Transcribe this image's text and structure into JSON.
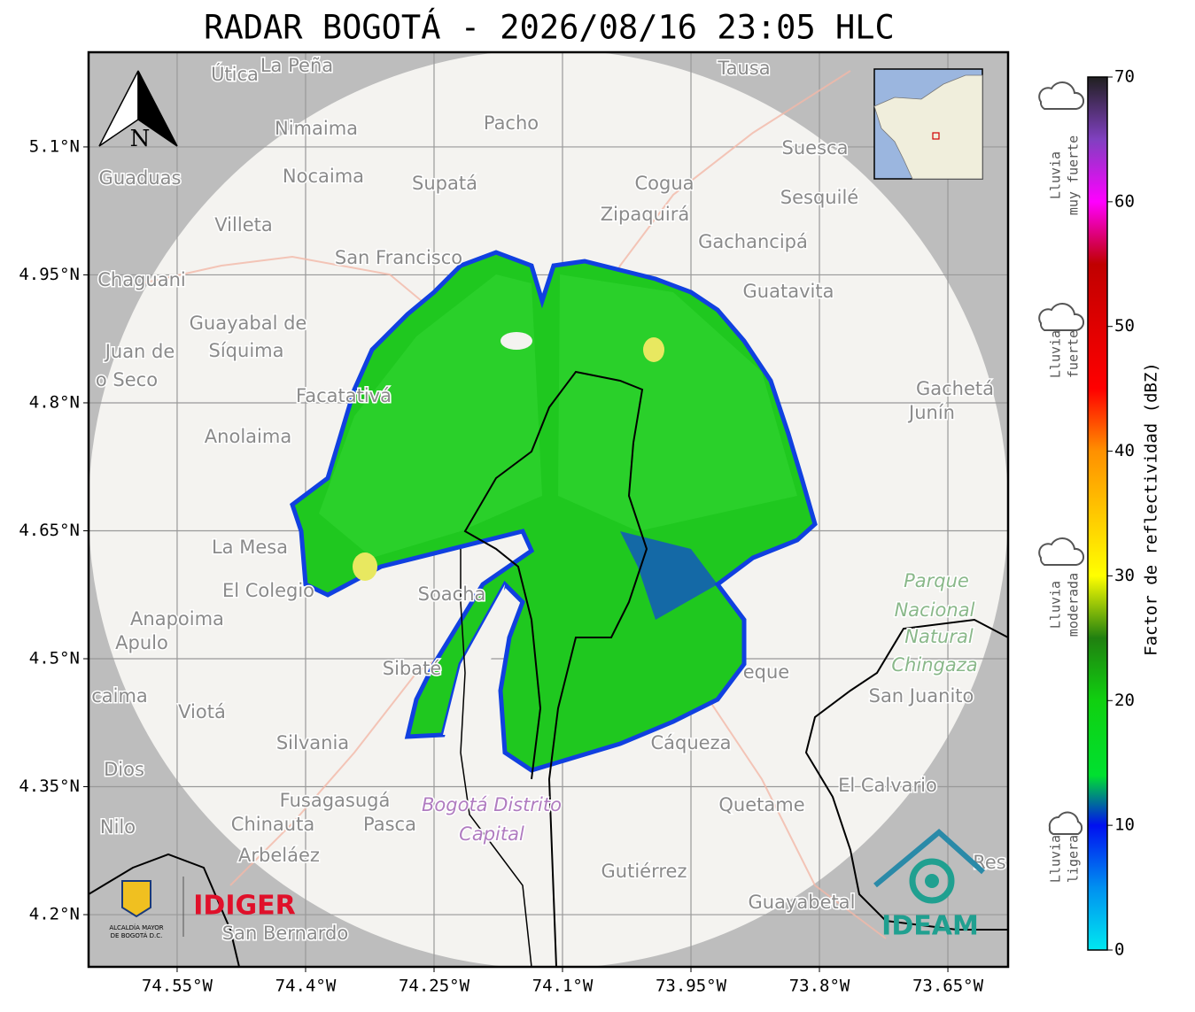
{
  "title": "RADAR BOGOTÁ - 2026/08/16 23:05 HLC",
  "map": {
    "lonlim": [
      -74.6534,
      -73.5797
    ],
    "latlim": [
      4.1388,
      5.211
    ],
    "lon_ticks": [
      {
        "value": -74.55,
        "label": "74.55°W"
      },
      {
        "value": -74.4,
        "label": "74.4°W"
      },
      {
        "value": -74.25,
        "label": "74.25°W"
      },
      {
        "value": -74.1,
        "label": "74.1°W"
      },
      {
        "value": -73.95,
        "label": "73.95°W"
      },
      {
        "value": -73.8,
        "label": "73.8°W"
      },
      {
        "value": -73.65,
        "label": "73.65°W"
      }
    ],
    "lat_ticks": [
      {
        "value": 5.1,
        "label": "5.1°N"
      },
      {
        "value": 4.95,
        "label": "4.95°N"
      },
      {
        "value": 4.8,
        "label": "4.8°N"
      },
      {
        "value": 4.65,
        "label": "4.65°N"
      },
      {
        "value": 4.5,
        "label": "4.5°N"
      },
      {
        "value": 4.35,
        "label": "4.35°N"
      },
      {
        "value": 4.2,
        "label": "4.2°N"
      }
    ],
    "grid": true,
    "north_label": "N",
    "places": [
      "Útica",
      "La Peña",
      "Tausa",
      "Pacho",
      "Nimaima",
      "Guaduas",
      "Nocaima",
      "Supatá",
      "Cogua",
      "Suesca",
      "Sesquilé",
      "Zipaquirá",
      "Villeta",
      "Gachancipá",
      "San Francisco",
      "Chaguani",
      "Guatavita",
      "Guayabal de",
      "Síquima",
      "Juan de",
      "o Seco",
      "Facatativá",
      "Gachetá",
      "Junín",
      "Anolaima",
      "La Mesa",
      "El Colegio",
      "Soacha",
      "Parque",
      "Nacional",
      "Natural",
      "Chingaza",
      "Anapoima",
      "Apulo",
      "Sibaté",
      "eque",
      "San Juanito",
      "caima",
      "Viotá",
      "Silvania",
      "Cáqueza",
      "Dios",
      "El Calvario",
      "Fusagasugá",
      "Bogotá Distrito",
      "Capital",
      "Quetame",
      "Nilo",
      "Chinauta",
      "Pasca",
      "Arbeláez",
      "Gutiérrez",
      "Guayabetal",
      "San Bernardo",
      "Res"
    ]
  },
  "colorbar": {
    "lim": [
      0,
      70
    ],
    "ticks": [
      0,
      10,
      20,
      30,
      40,
      50,
      60,
      70
    ],
    "label": "Factor de reflectividad (dBZ)",
    "stops": [
      {
        "value": 0,
        "color": "#00e8f0"
      },
      {
        "value": 5,
        "color": "#0090f0"
      },
      {
        "value": 10,
        "color": "#0010f0"
      },
      {
        "value": 14,
        "color": "#00e030"
      },
      {
        "value": 20,
        "color": "#10d010"
      },
      {
        "value": 25,
        "color": "#208010"
      },
      {
        "value": 30,
        "color": "#ffff00"
      },
      {
        "value": 40,
        "color": "#ff9000"
      },
      {
        "value": 45,
        "color": "#ff0000"
      },
      {
        "value": 55,
        "color": "#c00000"
      },
      {
        "value": 60,
        "color": "#ff00ff"
      },
      {
        "value": 65,
        "color": "#8040c0"
      },
      {
        "value": 70,
        "color": "#202020"
      }
    ],
    "rain_classes": [
      [
        "Lluvia",
        "muy fuerte"
      ],
      [
        "Lluvia",
        "fuerte"
      ],
      [
        "Lluvia",
        "moderada"
      ],
      [
        "Lluvia",
        "ligera"
      ]
    ]
  },
  "logos": {
    "alcaldia": [
      "ALCALDÍA MAYOR",
      "DE BOGOTÁ D.C."
    ],
    "idiger": "IDIGER",
    "ideam": "IDEAM"
  }
}
